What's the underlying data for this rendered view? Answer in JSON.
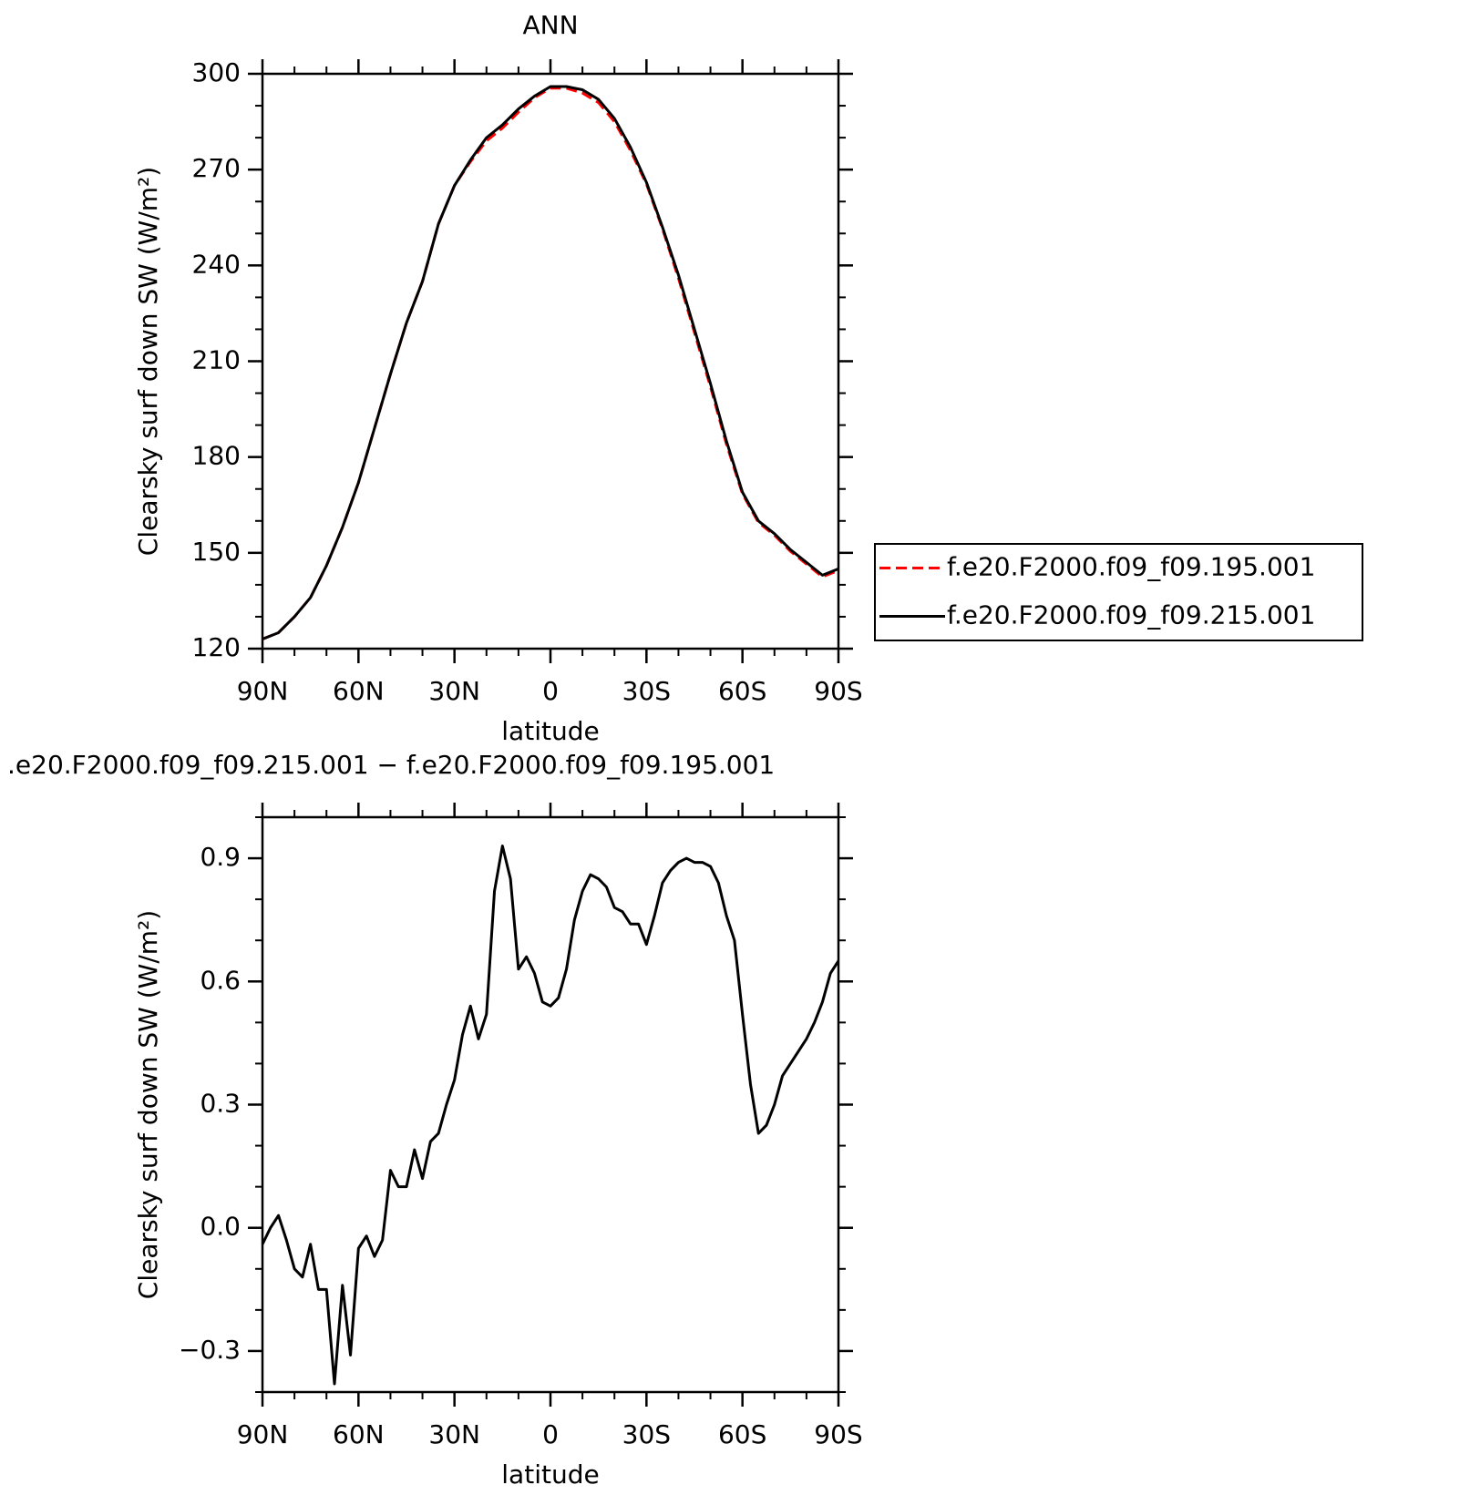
{
  "chart_data": [
    {
      "type": "line",
      "title": "ANN",
      "xlabel": "latitude",
      "ylabel": "Clearsky surf down SW (W/m²)",
      "x": [
        90,
        85,
        80,
        75,
        70,
        65,
        60,
        55,
        50,
        45,
        40,
        35,
        30,
        25,
        20,
        15,
        10,
        5,
        0,
        -5,
        -10,
        -15,
        -20,
        -25,
        -30,
        -35,
        -40,
        -45,
        -50,
        -55,
        -60,
        -65,
        -70,
        -75,
        -80,
        -85,
        -90
      ],
      "series": [
        {
          "name": "f.e20.F2000.f09_f09.195.001",
          "color": "#ff0000",
          "line_style": "dashed",
          "values": [
            123,
            125,
            130,
            136,
            146,
            158,
            172,
            189,
            206,
            222,
            235,
            253,
            265,
            272.5,
            279,
            283,
            288,
            292.5,
            295.5,
            295.5,
            294,
            291,
            285,
            276,
            265.5,
            251.5,
            236,
            219,
            202,
            184,
            168.5,
            159.5,
            155.5,
            150.5,
            146.5,
            142.5,
            144.5
          ]
        },
        {
          "name": "f.e20.F2000.f09_f09.215.001",
          "color": "#000000",
          "line_style": "solid",
          "values": [
            123,
            125,
            130,
            136,
            146,
            158,
            172,
            189,
            206,
            222,
            235,
            253,
            265,
            273,
            280,
            284,
            289,
            293,
            296,
            296,
            295,
            292,
            286,
            277,
            266,
            252,
            237,
            220,
            203,
            185,
            169,
            160,
            156,
            151,
            147,
            143,
            145
          ]
        }
      ],
      "xlim": [
        90,
        -90
      ],
      "xticks": [
        {
          "value": 90,
          "label": "90N"
        },
        {
          "value": 60,
          "label": "60N"
        },
        {
          "value": 30,
          "label": "30N"
        },
        0,
        {
          "value": -30,
          "label": "30S"
        },
        {
          "value": -60,
          "label": "60S"
        },
        {
          "value": -90,
          "label": "90S"
        }
      ],
      "ylim": [
        120,
        300
      ],
      "yticks": [
        120,
        150,
        180,
        210,
        240,
        270,
        300
      ],
      "legend": "right"
    },
    {
      "type": "line",
      "title": ".e20.F2000.f09_f09.215.001 − f.e20.F2000.f09_f09.195.001",
      "xlabel": "latitude",
      "ylabel": "Clearsky surf down SW (W/m²)",
      "x": [
        90,
        87.5,
        85,
        82.5,
        80,
        77.5,
        75,
        72.5,
        70,
        67.5,
        65,
        62.5,
        60,
        57.5,
        55,
        52.5,
        50,
        47.5,
        45,
        42.5,
        40,
        37.5,
        35,
        32.5,
        30,
        27.5,
        25,
        22.5,
        20,
        17.5,
        15,
        12.5,
        10,
        7.5,
        5,
        2.5,
        0,
        -2.5,
        -5,
        -7.5,
        -10,
        -12.5,
        -15,
        -17.5,
        -20,
        -22.5,
        -25,
        -27.5,
        -30,
        -32.5,
        -35,
        -37.5,
        -40,
        -42.5,
        -45,
        -47.5,
        -50,
        -52.5,
        -55,
        -57.5,
        -60,
        -62.5,
        -65,
        -67.5,
        -70,
        -72.5,
        -75,
        -77.5,
        -80,
        -82.5,
        -85,
        -87.5,
        -90
      ],
      "values": [
        -0.04,
        0.0,
        0.03,
        -0.03,
        -0.1,
        -0.12,
        -0.04,
        -0.15,
        -0.15,
        -0.38,
        -0.14,
        -0.31,
        -0.05,
        -0.02,
        -0.07,
        -0.03,
        0.14,
        0.1,
        0.1,
        0.19,
        0.12,
        0.21,
        0.23,
        0.3,
        0.36,
        0.47,
        0.54,
        0.46,
        0.52,
        0.82,
        0.93,
        0.85,
        0.63,
        0.66,
        0.62,
        0.55,
        0.54,
        0.56,
        0.63,
        0.75,
        0.82,
        0.86,
        0.85,
        0.83,
        0.78,
        0.77,
        0.74,
        0.74,
        0.69,
        0.76,
        0.84,
        0.87,
        0.89,
        0.9,
        0.89,
        0.89,
        0.88,
        0.84,
        0.76,
        0.7,
        0.52,
        0.35,
        0.23,
        0.25,
        0.3,
        0.37,
        0.4,
        0.43,
        0.46,
        0.5,
        0.55,
        0.62,
        0.65
      ],
      "color": "#000000",
      "xlim": [
        90,
        -90
      ],
      "xticks": [
        {
          "value": 90,
          "label": "90N"
        },
        {
          "value": 60,
          "label": "60N"
        },
        {
          "value": 30,
          "label": "30N"
        },
        0,
        {
          "value": -30,
          "label": "30S"
        },
        {
          "value": -60,
          "label": "60S"
        },
        {
          "value": -90,
          "label": "90S"
        }
      ],
      "ylim": [
        -0.4,
        1.0
      ],
      "yticks": [
        {
          "value": -0.3,
          "label": "−0.3"
        },
        {
          "value": 0,
          "label": "0.0"
        },
        0.3,
        0.6,
        0.9
      ]
    }
  ]
}
